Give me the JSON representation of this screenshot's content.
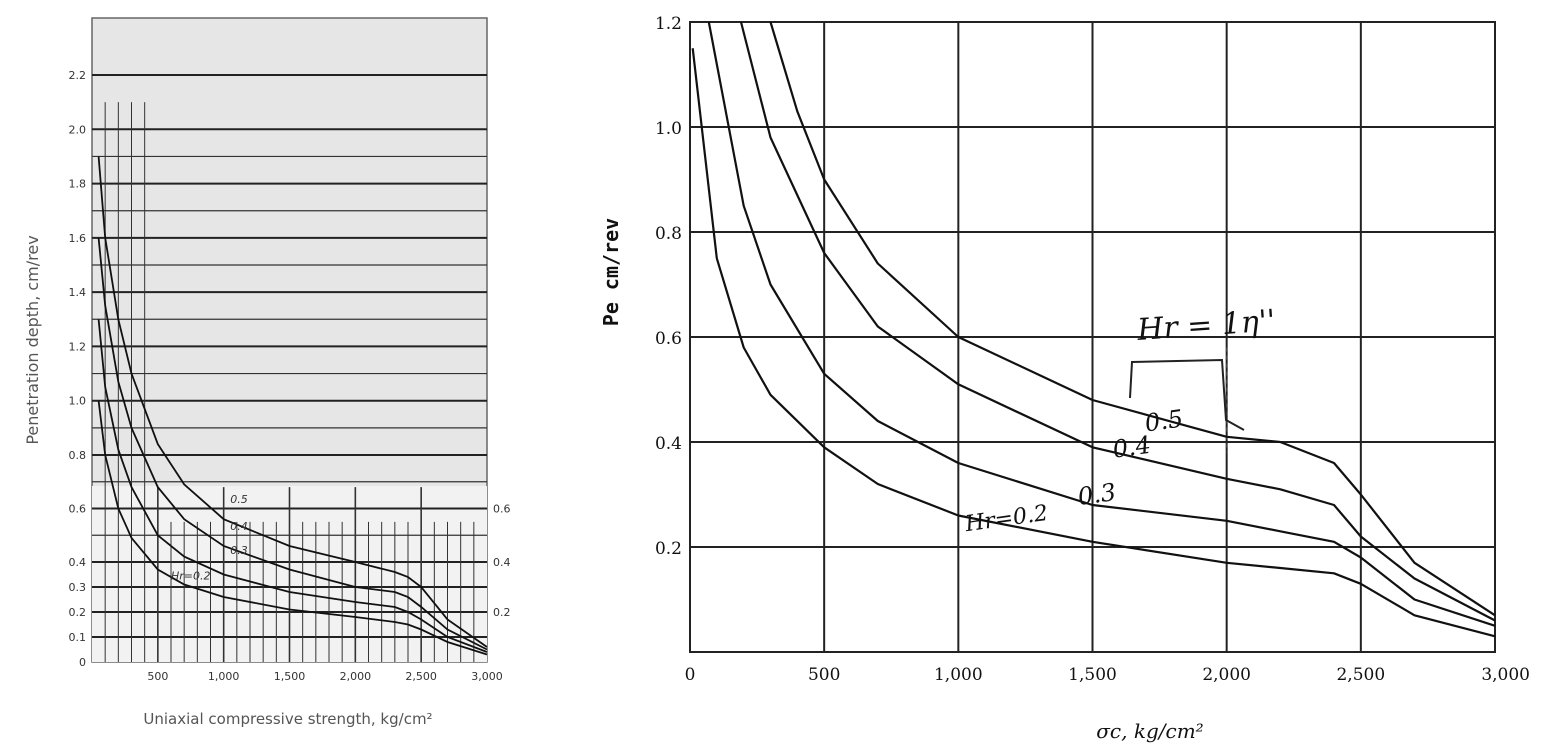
{
  "chart_data": [
    {
      "type": "line",
      "xlabel": "Uniaxial compressive strength, kg/cm²",
      "ylabel": "Penetration depth, cm/rev",
      "xlim": [
        0,
        3000
      ],
      "ylim": [
        0,
        2.3
      ],
      "x_ticks": [
        "500",
        "1,000",
        "1,500",
        "2,000",
        "2,500",
        "3,000"
      ],
      "y_ticks": [
        "0",
        "0.1",
        "0.2",
        "0.3",
        "0.4",
        "0.6",
        "0.8",
        "1.0",
        "1.2",
        "1.4",
        "1.6",
        "1.8",
        "2.0",
        "2.2"
      ],
      "y2_ticks": [
        "0.2",
        "0.4",
        "0.6"
      ],
      "grid": true,
      "series": [
        {
          "name": "0.5",
          "x": [
            50,
            100,
            200,
            300,
            500,
            700,
            1000,
            1500,
            2000,
            2300,
            2400,
            2500,
            2700,
            3000
          ],
          "y": [
            1.9,
            1.6,
            1.3,
            1.1,
            0.84,
            0.69,
            0.56,
            0.46,
            0.4,
            0.36,
            0.34,
            0.3,
            0.17,
            0.06
          ]
        },
        {
          "name": "0.4",
          "x": [
            50,
            100,
            200,
            300,
            500,
            700,
            1000,
            1500,
            2000,
            2300,
            2400,
            2500,
            2700,
            3000
          ],
          "y": [
            1.6,
            1.35,
            1.07,
            0.9,
            0.68,
            0.56,
            0.46,
            0.37,
            0.3,
            0.28,
            0.26,
            0.22,
            0.13,
            0.05
          ]
        },
        {
          "name": "0.3",
          "x": [
            50,
            100,
            200,
            300,
            500,
            700,
            1000,
            1500,
            2000,
            2300,
            2400,
            2500,
            2700,
            3000
          ],
          "y": [
            1.3,
            1.05,
            0.82,
            0.68,
            0.5,
            0.42,
            0.35,
            0.28,
            0.24,
            0.22,
            0.2,
            0.17,
            0.1,
            0.04
          ]
        },
        {
          "name": "Hr=0.2",
          "x": [
            50,
            100,
            200,
            300,
            500,
            700,
            1000,
            1500,
            2000,
            2300,
            2400,
            2500,
            2700,
            3000
          ],
          "y": [
            1.0,
            0.8,
            0.6,
            0.49,
            0.37,
            0.31,
            0.26,
            0.21,
            0.18,
            0.16,
            0.15,
            0.13,
            0.08,
            0.03
          ]
        }
      ]
    },
    {
      "type": "line",
      "xlabel": "σc, kg/cm²",
      "ylabel": "Pe cm/rev",
      "xlim": [
        0,
        3000
      ],
      "ylim": [
        0,
        1.2
      ],
      "x_ticks": [
        "0",
        "500",
        "1,000",
        "1,500",
        "2,000",
        "2,500",
        "3,000"
      ],
      "y_ticks": [
        "0.2",
        "0.4",
        "0.6",
        "0.8",
        "1.0",
        "1.2"
      ],
      "grid": true,
      "annotation": "Hr = 1η''",
      "series": [
        {
          "name": "0.5",
          "x": [
            300,
            400,
            500,
            700,
            1000,
            1500,
            2000,
            2200,
            2400,
            2500,
            2700,
            3000
          ],
          "y": [
            1.2,
            1.03,
            0.9,
            0.74,
            0.6,
            0.48,
            0.41,
            0.4,
            0.36,
            0.3,
            0.17,
            0.07
          ]
        },
        {
          "name": "0.4",
          "x": [
            190,
            300,
            500,
            700,
            1000,
            1500,
            2000,
            2200,
            2400,
            2500,
            2700,
            3000
          ],
          "y": [
            1.2,
            0.98,
            0.76,
            0.62,
            0.51,
            0.39,
            0.33,
            0.31,
            0.28,
            0.22,
            0.14,
            0.06
          ]
        },
        {
          "name": "0.3",
          "x": [
            70,
            200,
            300,
            500,
            700,
            1000,
            1500,
            2000,
            2200,
            2400,
            2500,
            2700,
            3000
          ],
          "y": [
            1.2,
            0.85,
            0.7,
            0.53,
            0.44,
            0.36,
            0.28,
            0.25,
            0.23,
            0.21,
            0.18,
            0.1,
            0.05
          ]
        },
        {
          "name": "Hr=0.2",
          "x": [
            10,
            100,
            200,
            300,
            500,
            700,
            1000,
            1500,
            2000,
            2200,
            2400,
            2500,
            2700,
            3000
          ],
          "y": [
            1.15,
            0.75,
            0.58,
            0.49,
            0.39,
            0.32,
            0.26,
            0.21,
            0.17,
            0.16,
            0.15,
            0.13,
            0.07,
            0.03
          ]
        }
      ]
    }
  ]
}
